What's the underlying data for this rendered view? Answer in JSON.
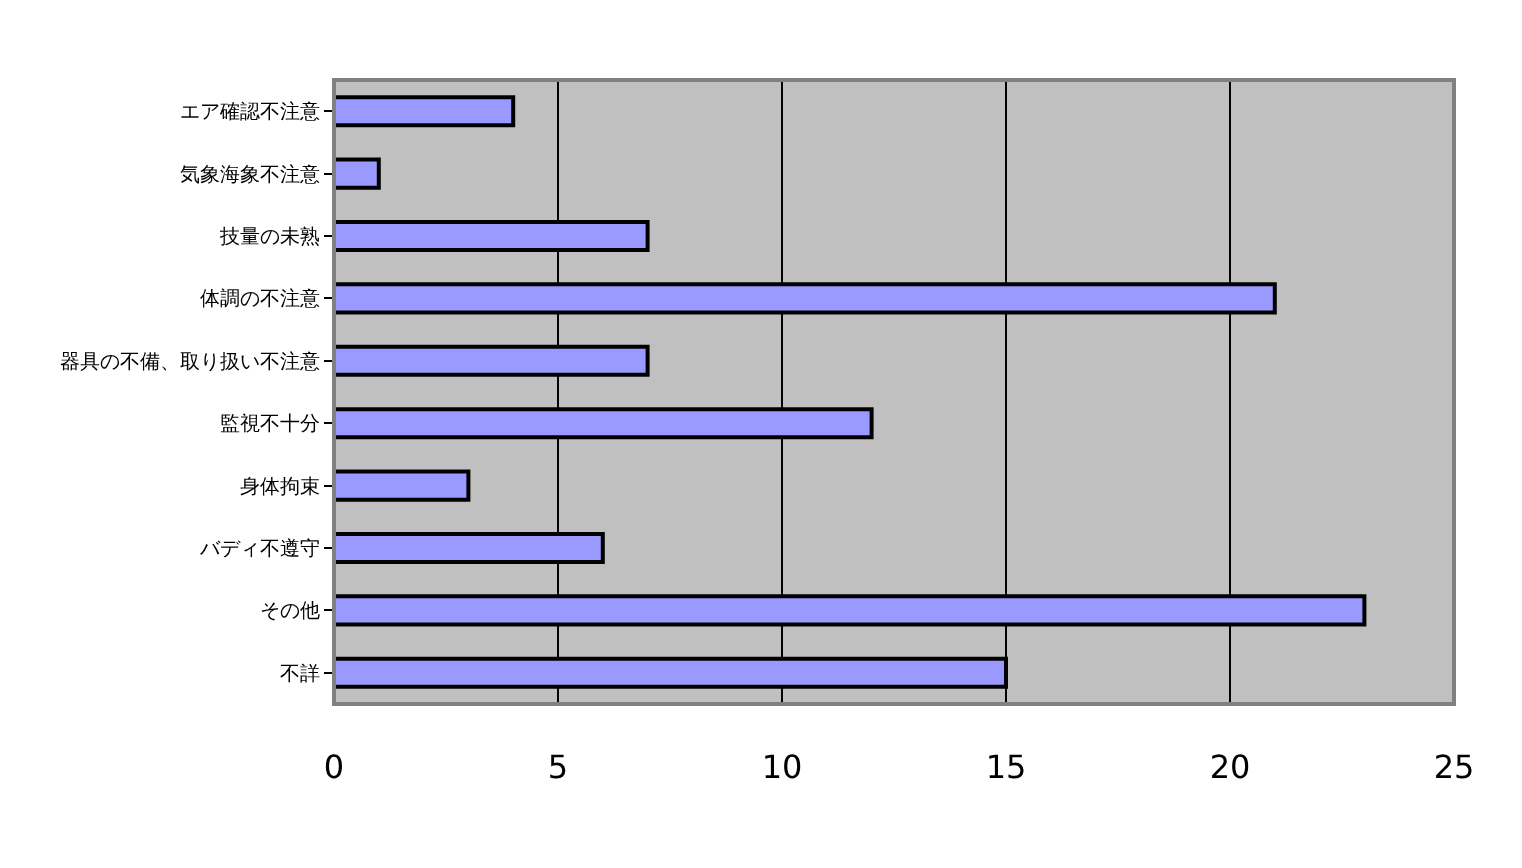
{
  "chart_data": {
    "type": "bar",
    "orientation": "horizontal",
    "categories": [
      "エア確認不注意",
      "気象海象不注意",
      "技量の未熟",
      "体調の不注意",
      "器具の不備、取り扱い不注意",
      "監視不十分",
      "身体拘束",
      "バディ不遵守",
      "その他",
      "不詳"
    ],
    "values": [
      4,
      1,
      7,
      21,
      7,
      12,
      3,
      6,
      23,
      15
    ],
    "color": "#9999ff",
    "xlim": [
      0,
      25
    ],
    "xticks": [
      0,
      5,
      10,
      15,
      20,
      25
    ],
    "grid": "x"
  }
}
